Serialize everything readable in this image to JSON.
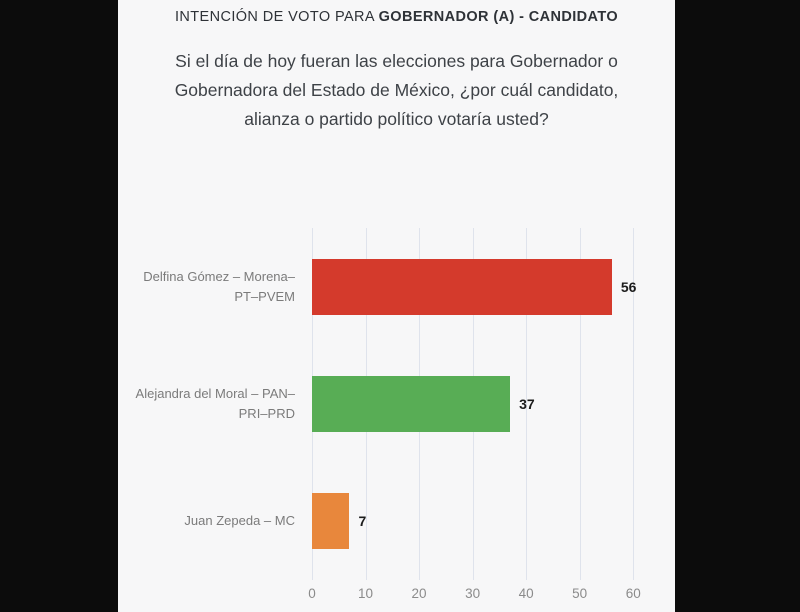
{
  "page": {
    "letterbox_color": "#0c0c0c",
    "panel_background": "#f7f7f8"
  },
  "header": {
    "title_prefix": "INTENCIÓN DE VOTO PARA ",
    "title_bold": "GOBERNADOR (A) - CANDIDATO",
    "question": "Si el día de hoy fueran las elecciones para Gobernador o Gobernadora del Estado de México, ¿por cuál candidato, alianza o partido político votaría usted?"
  },
  "chart_data": {
    "type": "bar",
    "orientation": "horizontal",
    "title": "INTENCIÓN DE VOTO PARA GOBERNADOR (A) - CANDIDATO",
    "categories": [
      "Delfina Gómez – Morena–PT–PVEM",
      "Alejandra del Moral – PAN–PRI–PRD",
      "Juan Zepeda – MC"
    ],
    "category_lines": [
      [
        "Delfina Gómez – Morena–",
        "PT–PVEM"
      ],
      [
        "Alejandra del Moral – PAN–",
        "PRI–PRD"
      ],
      [
        "Juan Zepeda – MC"
      ]
    ],
    "values": [
      56,
      37,
      7
    ],
    "bar_colors": [
      "#d43a2c",
      "#58ad55",
      "#e8873c"
    ],
    "value_label_color": "#1c1c1c",
    "axis_ticks": [
      0,
      10,
      20,
      30,
      40,
      50,
      60
    ],
    "xlim": [
      0,
      65
    ],
    "xlabel": "",
    "ylabel": "",
    "grid": true,
    "gridline_color": "#dfe3ec",
    "legend": false
  }
}
